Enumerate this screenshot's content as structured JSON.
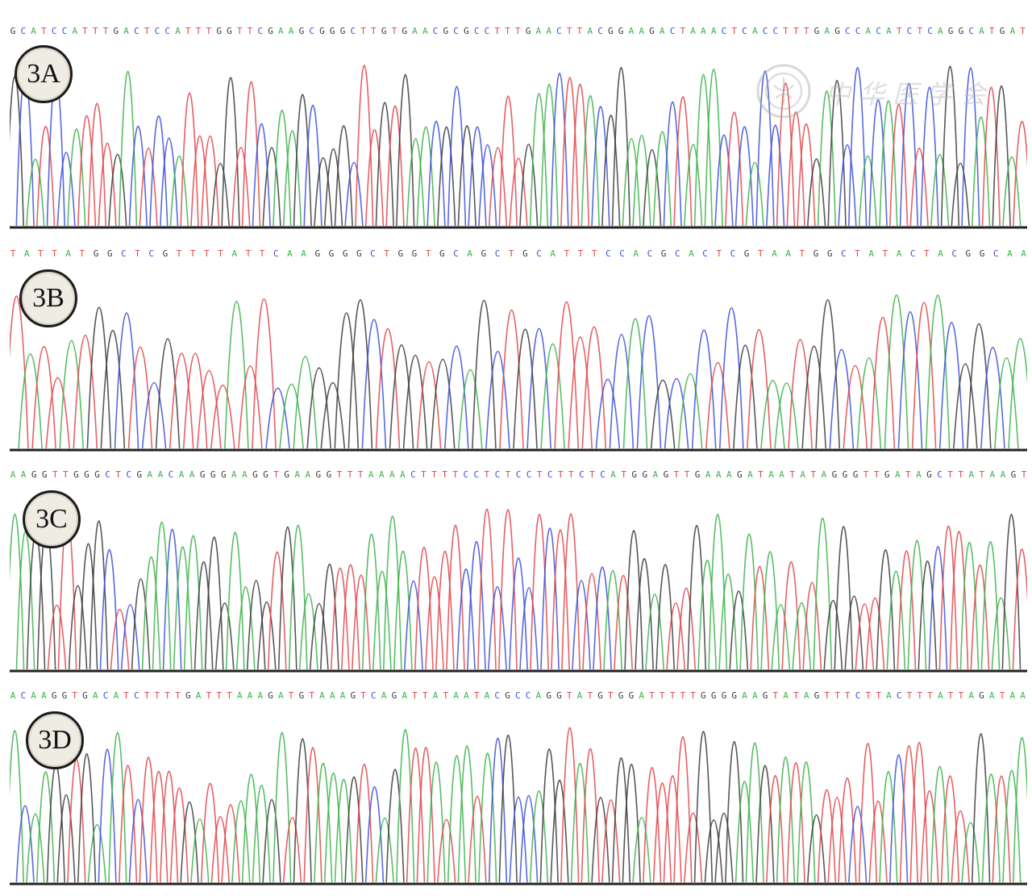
{
  "colors": {
    "A": "#3cb34a",
    "C": "#3b4fd8",
    "G": "#3a3a3a",
    "T": "#e0454a",
    "axis": "#222222"
  },
  "watermark": {
    "text": "中华医学会",
    "icon": "society-seal-icon"
  },
  "panels": [
    {
      "label": "3A",
      "sequence": "GCATCCATTTGACTCCATTTGGTTCGAAGCGGGCTTGTGAACGCGCCTTTGAACTTACGGAAGACTAAACTCACCTTTGAGCCACATCTCAGGCATGAT"
    },
    {
      "label": "3B",
      "sequence": "TATTATGGCTCGTTTTATTCAAGGGGCTGGTGCAGCTGCATTTCCACGCACTCGTAATGGCTATACTACGGCAA"
    },
    {
      "label": "3C",
      "sequence": "AAGGTTGGGCTCGAACAAGGGAAGGTGAAGGTTTAAAACTTTTCCTCTCCTCTTCTCATGGAGTTGAAAGATAATATAGGGTTGATAGCTTATAAGT"
    },
    {
      "label": "3D",
      "sequence": "ACAAGGTGACATCTTTTGATTTAAAGATGTAAAGTCAGATTATAATACGCCAGGTATGTGGATTTTTGGGGAAGTATAGTTTCTTACTTTATTAGATAA"
    }
  ]
}
